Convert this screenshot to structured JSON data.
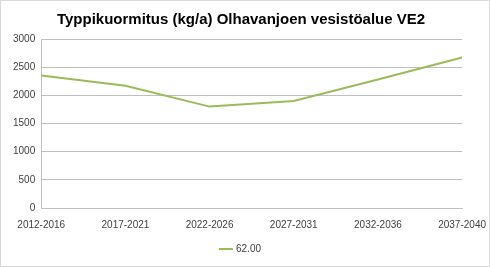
{
  "chart_data": {
    "type": "line",
    "title": "Typpikuormitus (kg/a) Olhavanjoen vesistöalue VE2",
    "categories": [
      "2012-2016",
      "2017-2021",
      "2022-2026",
      "2027-2031",
      "2032-2036",
      "2037-2040"
    ],
    "series": [
      {
        "name": "62.00",
        "color": "#9bbb59",
        "marker": "none",
        "line_style": "solid",
        "values": [
          2350,
          2170,
          1800,
          1900,
          2280,
          2670
        ]
      }
    ],
    "ylim": [
      0,
      3000
    ],
    "yticks": [
      0,
      500,
      1000,
      1500,
      2000,
      2500,
      3000
    ],
    "grid": true,
    "legend": "bottom"
  }
}
